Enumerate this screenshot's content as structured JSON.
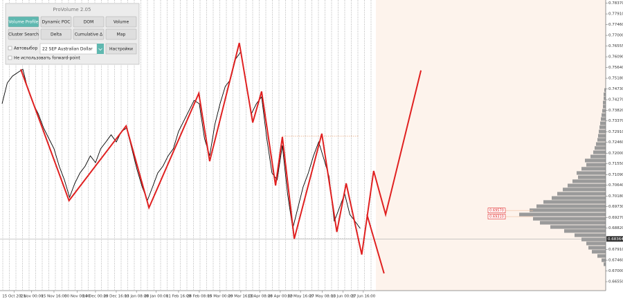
{
  "panel": {
    "title": "ProVolume 2.05",
    "buttons": [
      "Volume Profile",
      "Dynamic POC",
      "DOM",
      "Volume",
      "Cluster Search",
      "Delta",
      "Cumulative Δ",
      "Map"
    ],
    "auto_label": "Автовыбор",
    "instrument": "22 SEP Australian Dollar",
    "settings": "Настройки",
    "forward_label": "Не использовать forward-point"
  },
  "chart_data": {
    "type": "line",
    "xlim": [
      -0.4,
      116.3
    ],
    "ylim": [
      0.6617,
      0.785
    ],
    "price": {
      "color": "#000000",
      "values": [
        0.741,
        0.7498,
        0.7527,
        0.7542,
        0.7556,
        0.7468,
        0.741,
        0.7366,
        0.7307,
        0.7263,
        0.7219,
        0.7145,
        0.7087,
        0.7013,
        0.7072,
        0.7116,
        0.7145,
        0.7189,
        0.716,
        0.7219,
        0.7248,
        0.7278,
        0.7248,
        0.7292,
        0.7307,
        0.7219,
        0.7131,
        0.7057,
        0.6999,
        0.7057,
        0.7116,
        0.7145,
        0.7189,
        0.7219,
        0.7292,
        0.7336,
        0.738,
        0.7424,
        0.741,
        0.7263,
        0.7189,
        0.7322,
        0.741,
        0.7483,
        0.7512,
        0.76,
        0.763,
        0.7498,
        0.7366,
        0.741,
        0.7439,
        0.7263,
        0.7116,
        0.7087,
        0.7233,
        0.7028,
        0.6881,
        0.6969,
        0.7057,
        0.7116,
        0.7189,
        0.7248,
        0.7175,
        0.7101,
        0.6911,
        0.6969,
        0.7028,
        0.694,
        0.6911,
        0.6881
      ]
    },
    "zigzag": {
      "color": "#e02020",
      "x": [
        3.6,
        12.9,
        23.9,
        28.3,
        37.9,
        40,
        45.7,
        48.3,
        50,
        52.7,
        54,
        56.3,
        61.6,
        64.5,
        66.3,
        69.3,
        71.6,
        73.9,
        80.7
      ],
      "values": [
        0.7556,
        0.6999,
        0.7316,
        0.6969,
        0.7454,
        0.7166,
        0.7668,
        0.733,
        0.7462,
        0.7063,
        0.7269,
        0.6837,
        0.7283,
        0.6866,
        0.7072,
        0.677,
        0.7125,
        0.694,
        0.7551
      ]
    },
    "projection": {
      "color": "#e02020",
      "x": [
        70.3,
        73.6
      ],
      "values": [
        0.694,
        0.669
      ]
    },
    "levels": [
      {
        "color": "#e8a070",
        "x": [
          54,
          68.7
        ],
        "value": 0.7272
      },
      {
        "color": "#999999",
        "x": [
          56.3,
          70.3
        ],
        "value": 0.6837
      }
    ],
    "last_price": 0.68364,
    "price_labels": {
      "color": "#e02020",
      "values": [
        0.6957,
        0.6931
      ],
      "value_labels": [
        "0.69570",
        "0.69310"
      ]
    },
    "volume_profile": {
      "color": "#9a9a9a",
      "prices": [
        0.7468,
        0.745,
        0.7433,
        0.7415,
        0.7398,
        0.738,
        0.7362,
        0.7345,
        0.7327,
        0.731,
        0.7292,
        0.7274,
        0.7257,
        0.7239,
        0.7222,
        0.7204,
        0.7186,
        0.7169,
        0.7151,
        0.7134,
        0.7116,
        0.7098,
        0.7081,
        0.7063,
        0.7046,
        0.7028,
        0.701,
        0.6993,
        0.6975,
        0.6958,
        0.694,
        0.6922,
        0.6905,
        0.6887,
        0.687,
        0.6852,
        0.6834,
        0.6817,
        0.6799,
        0.6782,
        0.6764,
        0.6746,
        0.6729
      ],
      "values": [
        2,
        3,
        3,
        4,
        4,
        5,
        6,
        7,
        8,
        9,
        10,
        11,
        12,
        14,
        16,
        18,
        22,
        30,
        28,
        35,
        42,
        40,
        48,
        55,
        62,
        70,
        78,
        90,
        100,
        110,
        125,
        105,
        95,
        80,
        60,
        45,
        35,
        28,
        25,
        20,
        12,
        6,
        3
      ]
    },
    "yticks": [
      {
        "value": 0.7837,
        "label": "0.78370"
      },
      {
        "value": 0.7791,
        "label": "0.77910"
      },
      {
        "value": 0.7746,
        "label": "0.77460"
      },
      {
        "value": 0.77,
        "label": "0.77000"
      },
      {
        "value": 0.76555,
        "label": "0.76555"
      },
      {
        "value": 0.7609,
        "label": "0.76090"
      },
      {
        "value": 0.7564,
        "label": "0.75640"
      },
      {
        "value": 0.7518,
        "label": "0.75180"
      },
      {
        "value": 0.7473,
        "label": "0.74730"
      },
      {
        "value": 0.7427,
        "label": "0.74270"
      },
      {
        "value": 0.7382,
        "label": "0.73820"
      },
      {
        "value": 0.7337,
        "label": "0.73370"
      },
      {
        "value": 0.7291,
        "label": "0.72910"
      },
      {
        "value": 0.7246,
        "label": "0.72460"
      },
      {
        "value": 0.72,
        "label": "0.72000"
      },
      {
        "value": 0.7155,
        "label": "0.71550"
      },
      {
        "value": 0.7109,
        "label": "0.71090"
      },
      {
        "value": 0.7064,
        "label": "0.70640"
      },
      {
        "value": 0.7018,
        "label": "0.70180"
      },
      {
        "value": 0.6973,
        "label": "0.69730"
      },
      {
        "value": 0.6927,
        "label": "0.69270"
      },
      {
        "value": 0.6882,
        "label": "0.68820"
      },
      {
        "value": 0.6791,
        "label": "0.67910"
      },
      {
        "value": 0.6746,
        "label": "0.67460"
      },
      {
        "value": 0.67,
        "label": "0.67000"
      },
      {
        "value": 0.6655,
        "label": "0.66550"
      }
    ],
    "xticks": [
      {
        "value": 2.3,
        "label": "15 Oct 2021"
      },
      {
        "value": 5.7,
        "label": "1 Nov 00:00"
      },
      {
        "value": 10,
        "label": "15 Nov 16:00"
      },
      {
        "value": 14.5,
        "label": "30 Nov 08:00"
      },
      {
        "value": 18,
        "label": "14 Dec 00:00"
      },
      {
        "value": 22,
        "label": "29 Dec 16:00"
      },
      {
        "value": 25.9,
        "label": "13 Jan 08:00"
      },
      {
        "value": 29.7,
        "label": "28 Jan 00:00"
      },
      {
        "value": 34,
        "label": "11 Feb 16:00"
      },
      {
        "value": 38,
        "label": "28 Feb 08:00"
      },
      {
        "value": 42,
        "label": "15 Mar 00:00"
      },
      {
        "value": 46,
        "label": "29 Mar 16:00"
      },
      {
        "value": 49.7,
        "label": "13 Apr 08:00"
      },
      {
        "value": 53.6,
        "label": "28 Apr 00:00"
      },
      {
        "value": 57.5,
        "label": "12 May 16:00"
      },
      {
        "value": 61.7,
        "label": "27 May 08:00"
      },
      {
        "value": 65.7,
        "label": "13 Jun 00:00"
      },
      {
        "value": 69.6,
        "label": "27 Jun 16:00"
      }
    ]
  }
}
